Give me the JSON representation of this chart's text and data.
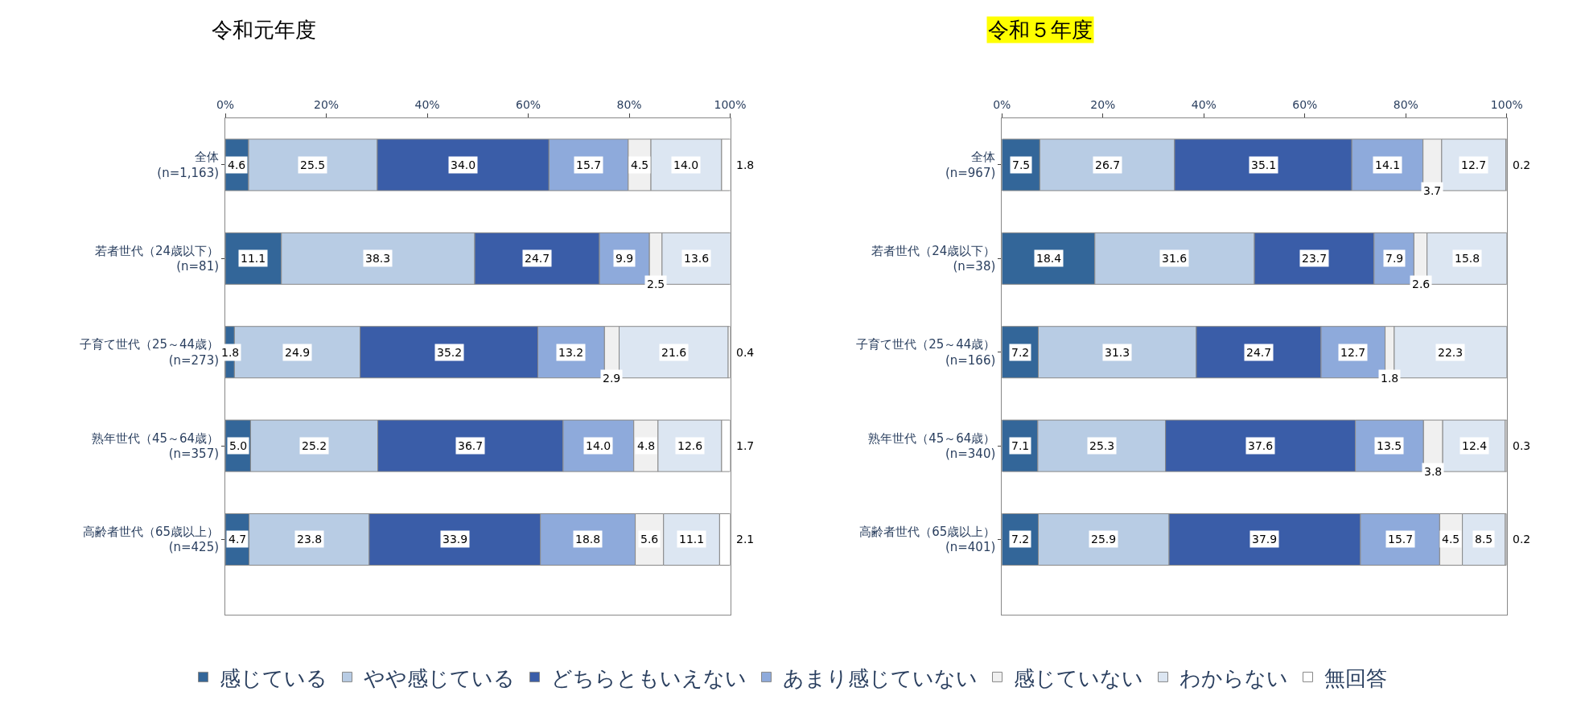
{
  "chart_data": [
    {
      "type": "bar",
      "orientation": "horizontal",
      "stacked": true,
      "title": "令和元年度",
      "legend": "bottom",
      "xlim": [
        0,
        100
      ],
      "xticks": [
        {
          "value": 0,
          "label": "0%"
        },
        {
          "value": 20,
          "label": "20%"
        },
        {
          "value": 40,
          "label": "40%"
        },
        {
          "value": 60,
          "label": "60%"
        },
        {
          "value": 80,
          "label": "80%"
        },
        {
          "value": 100,
          "label": "100%"
        }
      ],
      "categories": [
        "全体\n(n=1,163)",
        "若者世代（24歳以下）\n(n=81)",
        "子育て世代（25～44歳）\n(n=273)",
        "熟年世代（45～64歳）\n(n=357)",
        "高齢者世代（65歳以上）\n(n=425)"
      ],
      "series": [
        {
          "name": "感じている",
          "color": "#336699",
          "values": [
            4.6,
            11.1,
            1.8,
            5.0,
            4.7
          ],
          "value_labels": [
            "4.6",
            "11.1",
            "1.8",
            "5.0",
            "4.7"
          ]
        },
        {
          "name": "やや感じている",
          "color": "#b8cce4",
          "values": [
            25.5,
            38.3,
            24.9,
            25.2,
            23.8
          ],
          "value_labels": [
            "25.5",
            "38.3",
            "24.9",
            "25.2",
            "23.8"
          ]
        },
        {
          "name": "どちらともいえない",
          "color": "#3a5da8",
          "values": [
            34.0,
            24.7,
            35.2,
            36.7,
            33.9
          ],
          "value_labels": [
            "34.0",
            "24.7",
            "35.2",
            "36.7",
            "33.9"
          ]
        },
        {
          "name": "あまり感じていない",
          "color": "#8eaadb",
          "values": [
            15.7,
            9.9,
            13.2,
            14.0,
            18.8
          ],
          "value_labels": [
            "15.7",
            "9.9",
            "13.2",
            "14.0",
            "18.8"
          ]
        },
        {
          "name": "感じていない",
          "color": "#f0f0f0",
          "values": [
            4.5,
            2.5,
            2.9,
            4.8,
            5.6
          ],
          "value_labels": [
            "4.5",
            "2.5",
            "2.9",
            "4.8",
            "5.6"
          ]
        },
        {
          "name": "わからない",
          "color": "#dce6f2",
          "values": [
            14.0,
            13.6,
            21.6,
            12.6,
            11.1
          ],
          "value_labels": [
            "14.0",
            "13.6",
            "21.6",
            "12.6",
            "11.1"
          ]
        },
        {
          "name": "無回答",
          "color": "#ffffff",
          "values": [
            1.8,
            null,
            0.4,
            1.7,
            2.1
          ],
          "value_labels": [
            "1.8",
            null,
            "0.4",
            "1.7",
            "2.1"
          ]
        }
      ]
    },
    {
      "type": "bar",
      "orientation": "horizontal",
      "stacked": true,
      "title": "令和５年度",
      "xlim": [
        0,
        100
      ],
      "xticks": [
        {
          "value": 0,
          "label": "0%"
        },
        {
          "value": 20,
          "label": "20%"
        },
        {
          "value": 40,
          "label": "40%"
        },
        {
          "value": 60,
          "label": "60%"
        },
        {
          "value": 80,
          "label": "80%"
        },
        {
          "value": 100,
          "label": "100%"
        }
      ],
      "categories": [
        "全体\n(n=967)",
        "若者世代（24歳以下）\n(n=38)",
        "子育て世代（25～44歳）\n(n=166)",
        "熟年世代（45～64歳）\n(n=340)",
        "高齢者世代（65歳以上）\n(n=401)"
      ],
      "series": [
        {
          "color": "#336699",
          "values": [
            7.5,
            18.4,
            7.2,
            7.1,
            7.2
          ],
          "value_labels": [
            "7.5",
            "18.4",
            "7.2",
            "7.1",
            "7.2"
          ]
        },
        {
          "color": "#b8cce4",
          "values": [
            26.7,
            31.6,
            31.3,
            25.3,
            25.9
          ],
          "value_labels": [
            "26.7",
            "31.6",
            "31.3",
            "25.3",
            "25.9"
          ]
        },
        {
          "color": "#3a5da8",
          "values": [
            35.1,
            23.7,
            24.7,
            37.6,
            37.9
          ],
          "value_labels": [
            "35.1",
            "23.7",
            "24.7",
            "37.6",
            "37.9"
          ]
        },
        {
          "color": "#8eaadb",
          "values": [
            14.1,
            7.9,
            12.7,
            13.5,
            15.7
          ],
          "value_labels": [
            "14.1",
            "7.9",
            "12.7",
            "13.5",
            "15.7"
          ]
        },
        {
          "color": "#f0f0f0",
          "values": [
            3.7,
            2.6,
            1.8,
            3.8,
            4.5
          ],
          "value_labels": [
            "3.7",
            "2.6",
            "1.8",
            "3.8",
            "4.5"
          ]
        },
        {
          "color": "#dce6f2",
          "values": [
            12.7,
            15.8,
            22.3,
            12.4,
            8.5
          ],
          "value_labels": [
            "12.7",
            "15.8",
            "22.3",
            "12.4",
            "8.5"
          ]
        },
        {
          "color": "#ffffff",
          "values": [
            0.2,
            null,
            null,
            0.3,
            0.2
          ],
          "value_labels": [
            "0.2",
            null,
            null,
            "0.3",
            "0.2"
          ]
        }
      ]
    }
  ]
}
